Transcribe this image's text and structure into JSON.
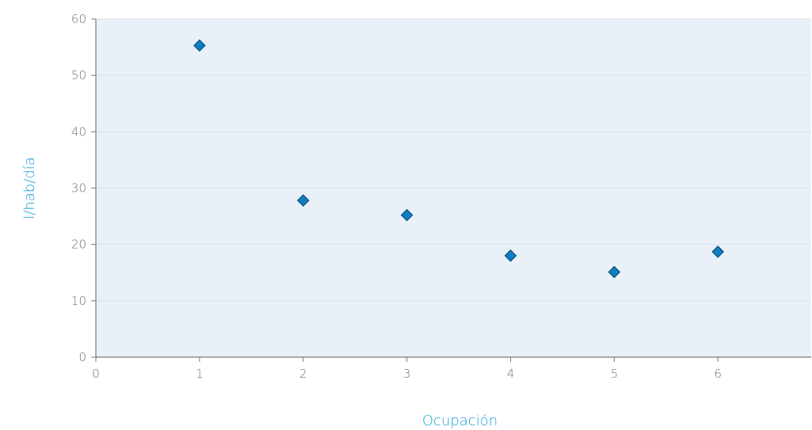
{
  "chart_data": {
    "type": "scatter",
    "title": "",
    "xlabel": "Ocupación",
    "ylabel": "l/hab/día",
    "xlim": [
      0,
      6.9
    ],
    "ylim": [
      0,
      60
    ],
    "x_ticks": [
      "0",
      "1",
      "2",
      "3",
      "4",
      "5",
      "6"
    ],
    "y_ticks": [
      "0",
      "10",
      "20",
      "30",
      "40",
      "50",
      "60"
    ],
    "grid": "horizontal",
    "legend": "none",
    "colors": {
      "plot_background": "#e9f0f8",
      "gridline": "#d9e3ee",
      "axis": "#7a7a7a",
      "marker_fill": "#0f7ec0",
      "marker_stroke": "#0b4f7e",
      "axis_title": "#1a9fd6",
      "tick_text": "#6f6f6f"
    },
    "series": [
      {
        "marker": "diamond",
        "points": [
          {
            "x": 1,
            "y": 55.3
          },
          {
            "x": 2,
            "y": 27.8
          },
          {
            "x": 3,
            "y": 25.2
          },
          {
            "x": 4,
            "y": 18.0
          },
          {
            "x": 5,
            "y": 15.1
          },
          {
            "x": 6,
            "y": 18.7
          }
        ]
      }
    ]
  }
}
